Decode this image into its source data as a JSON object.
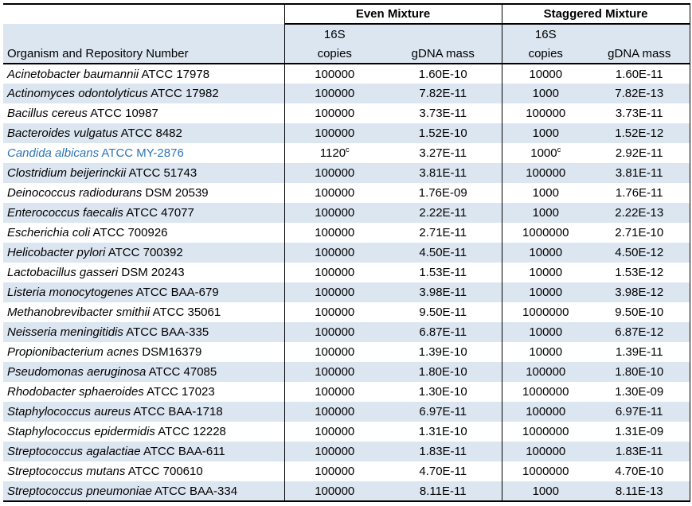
{
  "groups": {
    "even": "Even Mixture",
    "staggered": "Staggered Mixture"
  },
  "headers": {
    "organism": "Organism and Repository Number",
    "sixteen_s": "16S",
    "copies": "copies",
    "gdna_mass": "gDNA mass"
  },
  "colors": {
    "stripe": "#DCE6F1",
    "highlight_text": "#2E75B6",
    "border": "#000000"
  },
  "rows": [
    {
      "name": "Acinetobacter baumannii",
      "repo": "ATCC 17978",
      "even_copies": "100000",
      "even_gdna": "1.60E-10",
      "stag_copies": "10000",
      "stag_gdna": "1.60E-11",
      "highlighted": false
    },
    {
      "name": "Actinomyces odontolyticus",
      "repo": "ATCC 17982",
      "even_copies": "100000",
      "even_gdna": "7.82E-11",
      "stag_copies": "1000",
      "stag_gdna": "7.82E-13",
      "highlighted": false
    },
    {
      "name": "Bacillus cereus",
      "repo": "ATCC 10987",
      "even_copies": "100000",
      "even_gdna": "3.73E-11",
      "stag_copies": "100000",
      "stag_gdna": "3.73E-11",
      "highlighted": false
    },
    {
      "name": "Bacteroides vulgatus",
      "repo": "ATCC 8482",
      "even_copies": "100000",
      "even_gdna": "1.52E-10",
      "stag_copies": "1000",
      "stag_gdna": "1.52E-12",
      "highlighted": false
    },
    {
      "name": "Candida albicans",
      "repo": "ATCC MY-2876",
      "even_copies": "1120",
      "even_copies_sup": "c",
      "even_gdna": "3.27E-11",
      "stag_copies": "1000",
      "stag_copies_sup": "c",
      "stag_gdna": "2.92E-11",
      "highlighted": true
    },
    {
      "name": "Clostridium beijerinckii",
      "repo": "ATCC 51743",
      "even_copies": "100000",
      "even_gdna": "3.81E-11",
      "stag_copies": "100000",
      "stag_gdna": "3.81E-11",
      "highlighted": false
    },
    {
      "name": "Deinococcus radiodurans",
      "repo": "DSM 20539",
      "even_copies": "100000",
      "even_gdna": "1.76E-09",
      "stag_copies": "1000",
      "stag_gdna": "1.76E-11",
      "highlighted": false
    },
    {
      "name": "Enterococcus faecalis",
      "repo": "ATCC 47077",
      "even_copies": "100000",
      "even_gdna": "2.22E-11",
      "stag_copies": "1000",
      "stag_gdna": "2.22E-13",
      "highlighted": false
    },
    {
      "name": "Escherichia coli",
      "repo": "ATCC 700926",
      "even_copies": "100000",
      "even_gdna": "2.71E-11",
      "stag_copies": "1000000",
      "stag_gdna": "2.71E-10",
      "highlighted": false
    },
    {
      "name": "Helicobacter pylori",
      "repo": "ATCC 700392",
      "even_copies": "100000",
      "even_gdna": "4.50E-11",
      "stag_copies": "10000",
      "stag_gdna": "4.50E-12",
      "highlighted": false
    },
    {
      "name": "Lactobacillus gasseri",
      "repo": "DSM 20243",
      "even_copies": "100000",
      "even_gdna": "1.53E-11",
      "stag_copies": "10000",
      "stag_gdna": "1.53E-12",
      "highlighted": false
    },
    {
      "name": "Listeria monocytogenes",
      "repo": "ATCC BAA-679",
      "even_copies": "100000",
      "even_gdna": "3.98E-11",
      "stag_copies": "10000",
      "stag_gdna": "3.98E-12",
      "highlighted": false
    },
    {
      "name": "Methanobrevibacter smithii",
      "repo": "ATCC 35061",
      "even_copies": "100000",
      "even_gdna": "9.50E-11",
      "stag_copies": "1000000",
      "stag_gdna": "9.50E-10",
      "highlighted": false
    },
    {
      "name": "Neisseria meningitidis",
      "repo": "ATCC BAA-335",
      "even_copies": "100000",
      "even_gdna": "6.87E-11",
      "stag_copies": "10000",
      "stag_gdna": "6.87E-12",
      "highlighted": false
    },
    {
      "name": "Propionibacterium acnes",
      "repo": "DSM16379",
      "even_copies": "100000",
      "even_gdna": "1.39E-10",
      "stag_copies": "10000",
      "stag_gdna": "1.39E-11",
      "highlighted": false
    },
    {
      "name": "Pseudomonas aeruginosa",
      "repo": "ATCC 47085",
      "even_copies": "100000",
      "even_gdna": "1.80E-10",
      "stag_copies": "100000",
      "stag_gdna": "1.80E-10",
      "highlighted": false
    },
    {
      "name": "Rhodobacter sphaeroides",
      "repo": "ATCC 17023",
      "even_copies": "100000",
      "even_gdna": "1.30E-10",
      "stag_copies": "1000000",
      "stag_gdna": "1.30E-09",
      "highlighted": false
    },
    {
      "name": "Staphylococcus aureus",
      "repo": "ATCC BAA-1718",
      "even_copies": "100000",
      "even_gdna": "6.97E-11",
      "stag_copies": "100000",
      "stag_gdna": "6.97E-11",
      "highlighted": false
    },
    {
      "name": "Staphylococcus epidermidis",
      "repo": "ATCC 12228",
      "even_copies": "100000",
      "even_gdna": "1.31E-10",
      "stag_copies": "1000000",
      "stag_gdna": "1.31E-09",
      "highlighted": false
    },
    {
      "name": "Streptococcus agalactiae",
      "repo": "ATCC BAA-611",
      "even_copies": "100000",
      "even_gdna": "1.83E-11",
      "stag_copies": "100000",
      "stag_gdna": "1.83E-11",
      "highlighted": false
    },
    {
      "name": "Streptococcus mutans",
      "repo": "ATCC 700610",
      "even_copies": "100000",
      "even_gdna": "4.70E-11",
      "stag_copies": "1000000",
      "stag_gdna": "4.70E-10",
      "highlighted": false
    },
    {
      "name": "Streptococcus pneumoniae",
      "repo": "ATCC BAA-334",
      "even_copies": "100000",
      "even_gdna": "8.11E-11",
      "stag_copies": "1000",
      "stag_gdna": "8.11E-13",
      "highlighted": false
    }
  ]
}
